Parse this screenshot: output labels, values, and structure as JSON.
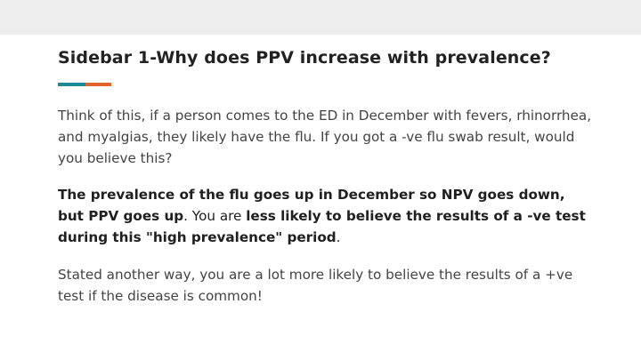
{
  "slide": {
    "title": "Sidebar 1-Why does PPV increase with prevalence?",
    "accent_colors": {
      "teal": "#1b8a9a",
      "orange": "#e2632c"
    },
    "paragraph1": "Think of this, if a person comes to the ED in December with fevers, rhinorrhea, and myalgias, they likely have the flu. If you got a -ve flu swab result, would you believe this?",
    "paragraph2": {
      "bold_part": "The prevalence of the flu goes up in December so NPV goes down, but PPV goes up",
      "middle_part": ". You are ",
      "bold_part_2": "less likely to believe the results of a -ve test during this \"high prevalence\" period",
      "end_part": "."
    },
    "paragraph3": "Stated another way, you are a lot more likely to believe the results of a +ve test if the disease is common!"
  }
}
